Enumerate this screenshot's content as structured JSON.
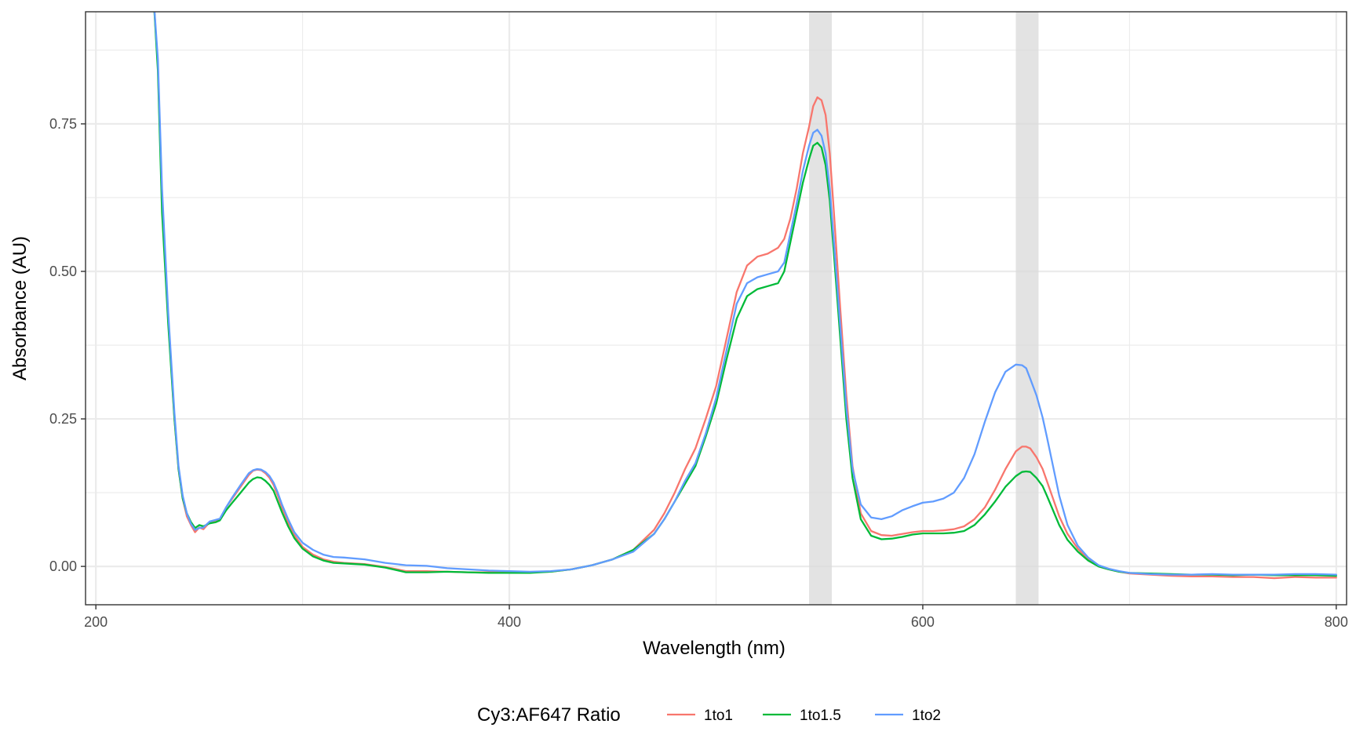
{
  "chart_data": {
    "type": "line",
    "xlabel": "Wavelength (nm)",
    "ylabel": "Absorbance (AU)",
    "xlim": [
      195,
      805
    ],
    "ylim": [
      -0.065,
      0.94
    ],
    "x_ticks": [
      200,
      400,
      600,
      800
    ],
    "x_tick_labels": [
      "200",
      "400",
      "600",
      "800"
    ],
    "y_ticks": [
      0.0,
      0.25,
      0.5,
      0.75
    ],
    "y_tick_labels": [
      "0.00",
      "0.25",
      "0.50",
      "0.75"
    ],
    "grid": true,
    "shaded_bands": [
      {
        "x0": 545,
        "x1": 556
      },
      {
        "x0": 645,
        "x1": 656
      }
    ],
    "legend": {
      "title": "Cy3:AF647 Ratio",
      "position": "bottom"
    },
    "x": [
      228,
      230,
      232,
      235,
      238,
      240,
      242,
      244,
      246,
      248,
      250,
      252,
      255,
      258,
      260,
      263,
      266,
      270,
      274,
      276,
      278,
      280,
      282,
      284,
      286,
      288,
      290,
      293,
      296,
      300,
      305,
      310,
      315,
      320,
      330,
      340,
      350,
      360,
      370,
      380,
      390,
      400,
      410,
      420,
      430,
      440,
      450,
      460,
      470,
      475,
      480,
      485,
      490,
      495,
      500,
      505,
      510,
      515,
      520,
      525,
      530,
      533,
      536,
      539,
      542,
      545,
      547,
      549,
      551,
      553,
      555,
      557,
      560,
      563,
      566,
      570,
      575,
      580,
      585,
      590,
      595,
      600,
      605,
      610,
      615,
      620,
      625,
      630,
      635,
      640,
      645,
      648,
      650,
      652,
      655,
      658,
      660,
      663,
      666,
      670,
      675,
      680,
      685,
      690,
      695,
      700,
      710,
      720,
      730,
      740,
      750,
      760,
      770,
      780,
      790,
      800
    ],
    "series": [
      {
        "name": "1to1",
        "color": "#F8766D",
        "values": [
          0.96,
          0.85,
          0.62,
          0.42,
          0.25,
          0.165,
          0.115,
          0.085,
          0.07,
          0.058,
          0.066,
          0.063,
          0.075,
          0.078,
          0.08,
          0.1,
          0.115,
          0.135,
          0.155,
          0.162,
          0.164,
          0.163,
          0.158,
          0.15,
          0.138,
          0.12,
          0.1,
          0.075,
          0.053,
          0.033,
          0.02,
          0.012,
          0.008,
          0.006,
          0.004,
          -0.001,
          -0.008,
          -0.008,
          -0.009,
          -0.01,
          -0.01,
          -0.01,
          -0.01,
          -0.009,
          -0.005,
          0.002,
          0.012,
          0.028,
          0.062,
          0.09,
          0.125,
          0.165,
          0.2,
          0.25,
          0.305,
          0.385,
          0.465,
          0.51,
          0.525,
          0.53,
          0.54,
          0.555,
          0.59,
          0.64,
          0.7,
          0.745,
          0.78,
          0.795,
          0.79,
          0.765,
          0.7,
          0.6,
          0.44,
          0.29,
          0.17,
          0.09,
          0.06,
          0.053,
          0.052,
          0.055,
          0.058,
          0.06,
          0.06,
          0.061,
          0.063,
          0.068,
          0.08,
          0.1,
          0.13,
          0.165,
          0.195,
          0.203,
          0.203,
          0.2,
          0.185,
          0.165,
          0.145,
          0.115,
          0.085,
          0.055,
          0.03,
          0.012,
          0.0,
          -0.005,
          -0.009,
          -0.012,
          -0.014,
          -0.016,
          -0.017,
          -0.017,
          -0.018,
          -0.018,
          -0.02,
          -0.018,
          -0.019,
          -0.019
        ]
      },
      {
        "name": "1to1.5",
        "color": "#00BA38",
        "values": [
          0.96,
          0.84,
          0.6,
          0.41,
          0.25,
          0.165,
          0.115,
          0.09,
          0.075,
          0.065,
          0.07,
          0.068,
          0.073,
          0.075,
          0.078,
          0.095,
          0.108,
          0.125,
          0.142,
          0.148,
          0.151,
          0.15,
          0.145,
          0.138,
          0.128,
          0.11,
          0.092,
          0.068,
          0.048,
          0.03,
          0.017,
          0.01,
          0.006,
          0.005,
          0.003,
          -0.002,
          -0.01,
          -0.01,
          -0.009,
          -0.01,
          -0.011,
          -0.011,
          -0.011,
          -0.009,
          -0.005,
          0.002,
          0.012,
          0.028,
          0.055,
          0.08,
          0.11,
          0.14,
          0.17,
          0.22,
          0.275,
          0.35,
          0.42,
          0.458,
          0.47,
          0.475,
          0.48,
          0.5,
          0.55,
          0.6,
          0.65,
          0.69,
          0.713,
          0.718,
          0.71,
          0.68,
          0.62,
          0.53,
          0.39,
          0.25,
          0.15,
          0.08,
          0.052,
          0.046,
          0.047,
          0.05,
          0.054,
          0.056,
          0.056,
          0.056,
          0.057,
          0.06,
          0.07,
          0.088,
          0.11,
          0.135,
          0.153,
          0.16,
          0.161,
          0.16,
          0.15,
          0.136,
          0.12,
          0.095,
          0.07,
          0.045,
          0.025,
          0.01,
          0.0,
          -0.005,
          -0.009,
          -0.011,
          -0.012,
          -0.013,
          -0.014,
          -0.014,
          -0.015,
          -0.014,
          -0.015,
          -0.015,
          -0.015,
          -0.016
        ]
      },
      {
        "name": "1to2",
        "color": "#619CFF",
        "values": [
          0.96,
          0.86,
          0.64,
          0.43,
          0.26,
          0.17,
          0.12,
          0.09,
          0.072,
          0.062,
          0.065,
          0.066,
          0.076,
          0.079,
          0.081,
          0.1,
          0.117,
          0.138,
          0.158,
          0.163,
          0.165,
          0.164,
          0.16,
          0.153,
          0.142,
          0.125,
          0.105,
          0.08,
          0.058,
          0.04,
          0.028,
          0.02,
          0.016,
          0.015,
          0.012,
          0.006,
          0.002,
          0.001,
          -0.003,
          -0.005,
          -0.007,
          -0.008,
          -0.009,
          -0.008,
          -0.005,
          0.002,
          0.012,
          0.025,
          0.055,
          0.08,
          0.11,
          0.145,
          0.175,
          0.225,
          0.285,
          0.365,
          0.445,
          0.48,
          0.49,
          0.495,
          0.5,
          0.515,
          0.565,
          0.615,
          0.67,
          0.713,
          0.735,
          0.74,
          0.73,
          0.7,
          0.64,
          0.55,
          0.41,
          0.27,
          0.165,
          0.105,
          0.083,
          0.08,
          0.085,
          0.095,
          0.102,
          0.108,
          0.11,
          0.115,
          0.125,
          0.15,
          0.19,
          0.245,
          0.295,
          0.33,
          0.342,
          0.341,
          0.336,
          0.318,
          0.29,
          0.252,
          0.22,
          0.17,
          0.12,
          0.07,
          0.035,
          0.015,
          0.002,
          -0.004,
          -0.008,
          -0.011,
          -0.013,
          -0.014,
          -0.014,
          -0.013,
          -0.014,
          -0.014,
          -0.014,
          -0.013,
          -0.013,
          -0.014
        ]
      }
    ]
  }
}
